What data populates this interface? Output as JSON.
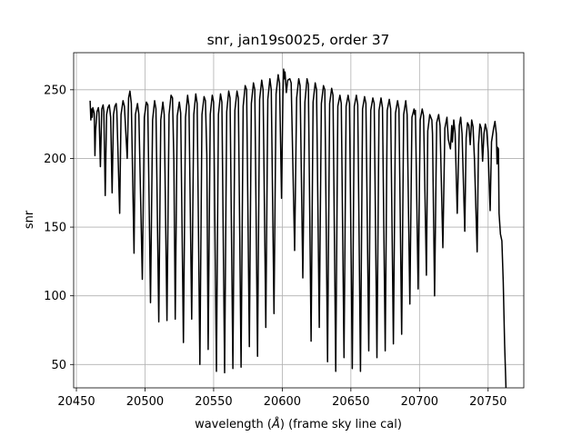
{
  "chart_data": {
    "type": "line",
    "title": "snr, jan19s0025, order 37",
    "xlabel": "wavelength (",
    "xlabel_unit": "Å",
    "xlabel_suffix": ") (frame sky line cal)",
    "ylabel": "snr",
    "xlim": [
      20448,
      20776
    ],
    "ylim": [
      33,
      277
    ],
    "xticks": [
      20450,
      20500,
      20550,
      20600,
      20650,
      20700,
      20750
    ],
    "yticks": [
      50,
      100,
      150,
      200,
      250
    ],
    "grid": true,
    "line_color": "#000000",
    "series": [
      {
        "values": [
          [
            20460,
            242
          ],
          [
            20460.5,
            228
          ],
          [
            20461,
            236
          ],
          [
            20461.5,
            230
          ],
          [
            20462,
            237
          ],
          [
            20463,
            233
          ],
          [
            20463.5,
            202
          ],
          [
            20464,
            220
          ],
          [
            20465,
            234
          ],
          [
            20466,
            237
          ],
          [
            20466.5,
            233
          ],
          [
            20467.5,
            194
          ],
          [
            20468.5,
            236
          ],
          [
            20469.5,
            239
          ],
          [
            20470,
            234
          ],
          [
            20471,
            173
          ],
          [
            20472,
            232
          ],
          [
            20473,
            237
          ],
          [
            20474,
            239
          ],
          [
            20475,
            230
          ],
          [
            20476,
            175
          ],
          [
            20477,
            232
          ],
          [
            20478,
            238
          ],
          [
            20479,
            240
          ],
          [
            20479.5,
            234
          ],
          [
            20481.5,
            160
          ],
          [
            20482.5,
            232
          ],
          [
            20484,
            242
          ],
          [
            20485,
            238
          ],
          [
            20487,
            200
          ],
          [
            20488,
            244
          ],
          [
            20489,
            249
          ],
          [
            20490,
            240
          ],
          [
            20492,
            131
          ],
          [
            20493,
            232
          ],
          [
            20494.5,
            240
          ],
          [
            20495.5,
            232
          ],
          [
            20498,
            112
          ],
          [
            20499.5,
            230
          ],
          [
            20501,
            241
          ],
          [
            20502,
            239
          ],
          [
            20504,
            95
          ],
          [
            20505.5,
            228
          ],
          [
            20507,
            242
          ],
          [
            20508,
            236
          ],
          [
            20510,
            81
          ],
          [
            20511.5,
            228
          ],
          [
            20513,
            241
          ],
          [
            20514,
            232
          ],
          [
            20516,
            82
          ],
          [
            20517.5,
            232
          ],
          [
            20519,
            246
          ],
          [
            20520,
            244
          ],
          [
            20521,
            198
          ],
          [
            20522,
            83
          ],
          [
            20523.5,
            231
          ],
          [
            20525,
            241
          ],
          [
            20526,
            233
          ],
          [
            20528,
            66
          ],
          [
            20529.5,
            230
          ],
          [
            20531,
            246
          ],
          [
            20532,
            238
          ],
          [
            20534,
            83
          ],
          [
            20535.5,
            232
          ],
          [
            20537,
            247
          ],
          [
            20538,
            240
          ],
          [
            20540,
            50
          ],
          [
            20541.5,
            232
          ],
          [
            20543,
            245
          ],
          [
            20544,
            242
          ],
          [
            20545,
            203
          ],
          [
            20546,
            61
          ],
          [
            20547.5,
            232
          ],
          [
            20549,
            246
          ],
          [
            20550,
            241
          ],
          [
            20552,
            45
          ],
          [
            20553.5,
            232
          ],
          [
            20555,
            247
          ],
          [
            20556,
            241
          ],
          [
            20558,
            44
          ],
          [
            20559.5,
            234
          ],
          [
            20561,
            249
          ],
          [
            20562,
            244
          ],
          [
            20564,
            47
          ],
          [
            20565.5,
            235
          ],
          [
            20567,
            249
          ],
          [
            20568,
            244
          ],
          [
            20570,
            48
          ],
          [
            20571.5,
            238
          ],
          [
            20573,
            253
          ],
          [
            20574,
            250
          ],
          [
            20576,
            63
          ],
          [
            20577.5,
            240
          ],
          [
            20579,
            255
          ],
          [
            20580,
            250
          ],
          [
            20582,
            56
          ],
          [
            20583.5,
            243
          ],
          [
            20585,
            257
          ],
          [
            20586,
            250
          ],
          [
            20588,
            77
          ],
          [
            20589.5,
            243
          ],
          [
            20591,
            258
          ],
          [
            20592,
            250
          ],
          [
            20594,
            87
          ],
          [
            20595.5,
            247
          ],
          [
            20597,
            261
          ],
          [
            20597.5,
            258
          ],
          [
            20598,
            255
          ],
          [
            20599.5,
            171
          ],
          [
            20600.5,
            245
          ],
          [
            20601,
            265
          ],
          [
            20601.5,
            258
          ],
          [
            20602,
            263
          ],
          [
            20603,
            248
          ],
          [
            20604,
            257
          ],
          [
            20605.5,
            258
          ],
          [
            20606.5,
            255
          ],
          [
            20609,
            133
          ],
          [
            20610.5,
            244
          ],
          [
            20612,
            258
          ],
          [
            20613,
            253
          ],
          [
            20615,
            113
          ],
          [
            20616.5,
            241
          ],
          [
            20618,
            258
          ],
          [
            20619,
            254
          ],
          [
            20621,
            67
          ],
          [
            20622.5,
            241
          ],
          [
            20624,
            255
          ],
          [
            20625,
            250
          ],
          [
            20627,
            77
          ],
          [
            20628.5,
            240
          ],
          [
            20630,
            253
          ],
          [
            20631,
            250
          ],
          [
            20633,
            52
          ],
          [
            20634.5,
            240
          ],
          [
            20636,
            251
          ],
          [
            20637,
            246
          ],
          [
            20639,
            45
          ],
          [
            20640.5,
            238
          ],
          [
            20642,
            246
          ],
          [
            20643,
            240
          ],
          [
            20645,
            55
          ],
          [
            20646.5,
            238
          ],
          [
            20648,
            246
          ],
          [
            20649,
            240
          ],
          [
            20651,
            47
          ],
          [
            20652.5,
            238
          ],
          [
            20654,
            246
          ],
          [
            20655,
            239
          ],
          [
            20657,
            45
          ],
          [
            20658.5,
            236
          ],
          [
            20660,
            245
          ],
          [
            20661,
            240
          ],
          [
            20663,
            60
          ],
          [
            20664.5,
            235
          ],
          [
            20666,
            244
          ],
          [
            20667,
            240
          ],
          [
            20669,
            55
          ],
          [
            20670.5,
            235
          ],
          [
            20672,
            244
          ],
          [
            20673,
            237
          ],
          [
            20675,
            60
          ],
          [
            20676.5,
            235
          ],
          [
            20678,
            243
          ],
          [
            20679,
            236
          ],
          [
            20681,
            65
          ],
          [
            20682.5,
            233
          ],
          [
            20684,
            242
          ],
          [
            20685,
            236
          ],
          [
            20687,
            72
          ],
          [
            20688.5,
            232
          ],
          [
            20690,
            242
          ],
          [
            20691,
            232
          ],
          [
            20693,
            94
          ],
          [
            20694.5,
            230
          ],
          [
            20696,
            236
          ],
          [
            20696.5,
            232
          ],
          [
            20697,
            235
          ],
          [
            20699,
            105
          ],
          [
            20700.5,
            228
          ],
          [
            20702,
            236
          ],
          [
            20703,
            231
          ],
          [
            20705,
            115
          ],
          [
            20706,
            220
          ],
          [
            20707.5,
            232
          ],
          [
            20709,
            228
          ],
          [
            20709.5,
            218
          ],
          [
            20711,
            100
          ],
          [
            20712.5,
            226
          ],
          [
            20714,
            232
          ],
          [
            20715,
            224
          ],
          [
            20717,
            135
          ],
          [
            20718.5,
            222
          ],
          [
            20720,
            230
          ],
          [
            20721,
            214
          ],
          [
            20722.5,
            207
          ],
          [
            20723.5,
            224
          ],
          [
            20724,
            212
          ],
          [
            20725,
            228
          ],
          [
            20726,
            218
          ],
          [
            20727.5,
            160
          ],
          [
            20729,
            224
          ],
          [
            20730,
            230
          ],
          [
            20731,
            218
          ],
          [
            20733,
            147
          ],
          [
            20734,
            215
          ],
          [
            20735,
            226
          ],
          [
            20736,
            224
          ],
          [
            20737,
            210
          ],
          [
            20738,
            228
          ],
          [
            20739,
            223
          ],
          [
            20740,
            200
          ],
          [
            20742,
            132
          ],
          [
            20743,
            210
          ],
          [
            20744,
            225
          ],
          [
            20745,
            222
          ],
          [
            20746,
            198
          ],
          [
            20747,
            218
          ],
          [
            20748,
            225
          ],
          [
            20749,
            220
          ],
          [
            20750,
            205
          ],
          [
            20751.5,
            162
          ],
          [
            20752.5,
            212
          ],
          [
            20754,
            222
          ],
          [
            20755,
            227
          ],
          [
            20756,
            218
          ],
          [
            20756.5,
            196
          ],
          [
            20757,
            208
          ],
          [
            20757.5,
            207
          ],
          [
            20758,
            160
          ],
          [
            20759,
            145
          ],
          [
            20760,
            140
          ],
          [
            20761,
            110
          ],
          [
            20762,
            65
          ],
          [
            20763,
            33
          ]
        ]
      }
    ]
  }
}
